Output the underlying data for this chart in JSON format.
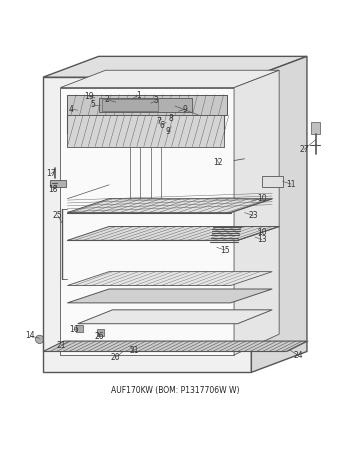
{
  "title": "AUF170KW (BOM: P1317706W W)",
  "bg_color": "#ffffff",
  "line_color": "#555555",
  "label_color": "#333333",
  "fig_width": 3.5,
  "fig_height": 4.53,
  "dpi": 100
}
